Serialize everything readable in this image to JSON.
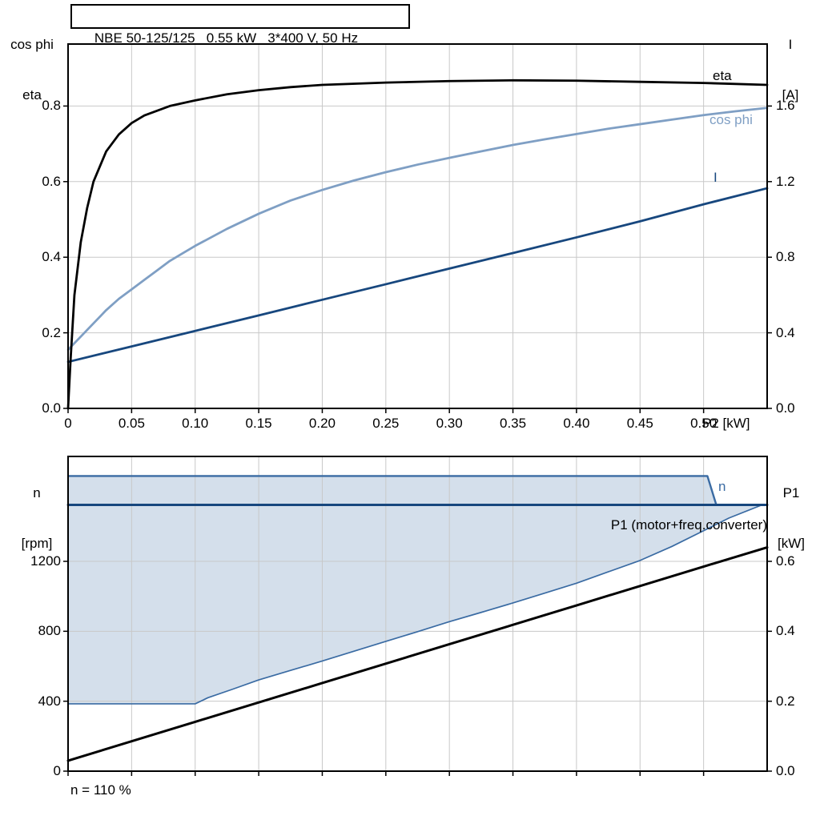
{
  "header": {
    "title": "NBE 50-125/125   0.55 kW   3*400 V, 50 Hz"
  },
  "top_chart": {
    "axis_left_line1": "cos phi",
    "axis_left_line2": "eta",
    "axis_right_line1": "I",
    "axis_right_line2": "[A]",
    "x_axis_label": "P2 [kW]",
    "curve_labels": {
      "eta": "eta",
      "cos_phi": "cos phi",
      "current": "I"
    }
  },
  "bottom_chart": {
    "axis_left_line1": "n",
    "axis_left_line2": "[rpm]",
    "axis_right_line1": "P1",
    "axis_right_line2": "[kW]",
    "curve_labels": {
      "n": "n",
      "p1": "P1 (motor+freq.converter)"
    },
    "caption": "n = 110 %"
  },
  "colors": {
    "eta": "#000000",
    "cos_phi": "#7f9fc4",
    "current": "#17477e",
    "band_fill": "#cdd9e8",
    "band_edge": "#3a6ba3",
    "n_line": "#17477e",
    "p1_line": "#000000",
    "grid": "#c8c8c8",
    "frame": "#000000"
  },
  "chart_data": [
    {
      "type": "line",
      "title": "NBE 50-125/125   0.55 kW   3*400 V, 50 Hz",
      "xlabel": "P2 [kW]",
      "ylabel_left": "cos phi / eta",
      "ylabel_right": "I [A]",
      "grid": true,
      "legend_position": "right-inline",
      "xlim": [
        0,
        0.55
      ],
      "x_ticks": [
        0,
        0.05,
        0.1,
        0.15,
        0.2,
        0.25,
        0.3,
        0.35,
        0.4,
        0.45,
        0.5
      ],
      "x_tick_labels": [
        "0",
        "0.05",
        "0.10",
        "0.15",
        "0.20",
        "0.25",
        "0.30",
        "0.35",
        "0.40",
        "0.45",
        "0.50"
      ],
      "ylim_left": [
        0,
        0.964
      ],
      "y_ticks_left": [
        0,
        0.2,
        0.4,
        0.6,
        0.8
      ],
      "y_tick_labels_left": [
        "0.0",
        "0.2",
        "0.4",
        "0.6",
        "0.8"
      ],
      "ylim_right": [
        0,
        1.928
      ],
      "y_ticks_right": [
        0,
        0.4,
        0.8,
        1.2,
        1.6
      ],
      "y_tick_labels_right": [
        "0.0",
        "0.4",
        "0.8",
        "1.2",
        "1.6"
      ],
      "series": [
        {
          "name": "cos phi",
          "axis": "left",
          "color": "#7f9fc4",
          "width": 2.8,
          "x": [
            0,
            0.01,
            0.02,
            0.03,
            0.04,
            0.05,
            0.06,
            0.07,
            0.08,
            0.09,
            0.1,
            0.125,
            0.15,
            0.175,
            0.2,
            0.225,
            0.25,
            0.275,
            0.3,
            0.325,
            0.35,
            0.375,
            0.4,
            0.425,
            0.45,
            0.475,
            0.5,
            0.525,
            0.55
          ],
          "y": [
            0.155,
            0.19,
            0.225,
            0.26,
            0.29,
            0.315,
            0.34,
            0.365,
            0.39,
            0.41,
            0.43,
            0.475,
            0.515,
            0.55,
            0.578,
            0.603,
            0.625,
            0.645,
            0.663,
            0.68,
            0.697,
            0.712,
            0.726,
            0.74,
            0.752,
            0.764,
            0.776,
            0.786,
            0.795
          ]
        },
        {
          "name": "I",
          "axis": "right",
          "color": "#17477e",
          "width": 2.8,
          "x": [
            0,
            0.05,
            0.1,
            0.15,
            0.2,
            0.25,
            0.3,
            0.35,
            0.4,
            0.45,
            0.5,
            0.55
          ],
          "y": [
            0.246,
            0.328,
            0.41,
            0.492,
            0.575,
            0.657,
            0.74,
            0.822,
            0.905,
            0.99,
            1.08,
            1.165
          ]
        },
        {
          "name": "eta",
          "axis": "left",
          "color": "#000000",
          "width": 2.8,
          "x": [
            0,
            0.002,
            0.005,
            0.01,
            0.015,
            0.02,
            0.03,
            0.04,
            0.05,
            0.06,
            0.08,
            0.1,
            0.125,
            0.15,
            0.175,
            0.2,
            0.25,
            0.3,
            0.35,
            0.4,
            0.45,
            0.5,
            0.55
          ],
          "y": [
            0,
            0.13,
            0.3,
            0.44,
            0.53,
            0.6,
            0.68,
            0.725,
            0.755,
            0.775,
            0.8,
            0.815,
            0.831,
            0.842,
            0.85,
            0.856,
            0.862,
            0.866,
            0.868,
            0.867,
            0.864,
            0.861,
            0.856
          ]
        }
      ]
    },
    {
      "type": "line",
      "title": "",
      "xlabel": "",
      "ylabel_left": "n [rpm]",
      "ylabel_right": "P1 [kW]",
      "grid": true,
      "xlim": [
        0,
        0.55
      ],
      "x_ticks": [
        0,
        0.05,
        0.1,
        0.15,
        0.2,
        0.25,
        0.3,
        0.35,
        0.4,
        0.45,
        0.5
      ],
      "ylim_left": [
        0,
        1800
      ],
      "y_ticks_left": [
        0,
        400,
        800,
        1200
      ],
      "y_tick_labels_left": [
        "0",
        "400",
        "800",
        "1200"
      ],
      "ylim_right": [
        0,
        0.9
      ],
      "y_ticks_right": [
        0,
        0.2,
        0.4,
        0.6
      ],
      "y_tick_labels_right": [
        "0.0",
        "0.2",
        "0.4",
        "0.6"
      ],
      "band": {
        "name": "speed-operating-range",
        "fill": "#cdd9e8",
        "edge_color": "#3a6ba3",
        "upper_x": [
          0,
          0.503,
          0.51,
          0.55
        ],
        "upper_y": [
          1688,
          1688,
          1523,
          1523
        ],
        "lower_x": [
          0,
          0.05,
          0.1,
          0.11,
          0.13,
          0.15,
          0.175,
          0.2,
          0.225,
          0.25,
          0.275,
          0.3,
          0.325,
          0.35,
          0.375,
          0.4,
          0.425,
          0.45,
          0.475,
          0.5,
          0.52,
          0.545,
          0.55
        ],
        "lower_y": [
          385,
          385,
          385,
          420,
          470,
          522,
          576,
          630,
          686,
          742,
          798,
          855,
          908,
          962,
          1018,
          1075,
          1140,
          1205,
          1285,
          1375,
          1448,
          1520,
          1523
        ]
      },
      "series": [
        {
          "name": "n",
          "axis": "left",
          "color": "#17477e",
          "width": 3,
          "x": [
            0,
            0.55
          ],
          "y": [
            1523,
            1523
          ]
        },
        {
          "name": "P1 (motor+freq.converter)",
          "axis": "right",
          "color": "#000000",
          "width": 3,
          "x": [
            0,
            0.1,
            0.2,
            0.3,
            0.4,
            0.5,
            0.55
          ],
          "y": [
            0.03,
            0.141,
            0.252,
            0.363,
            0.474,
            0.585,
            0.64
          ]
        }
      ]
    }
  ]
}
